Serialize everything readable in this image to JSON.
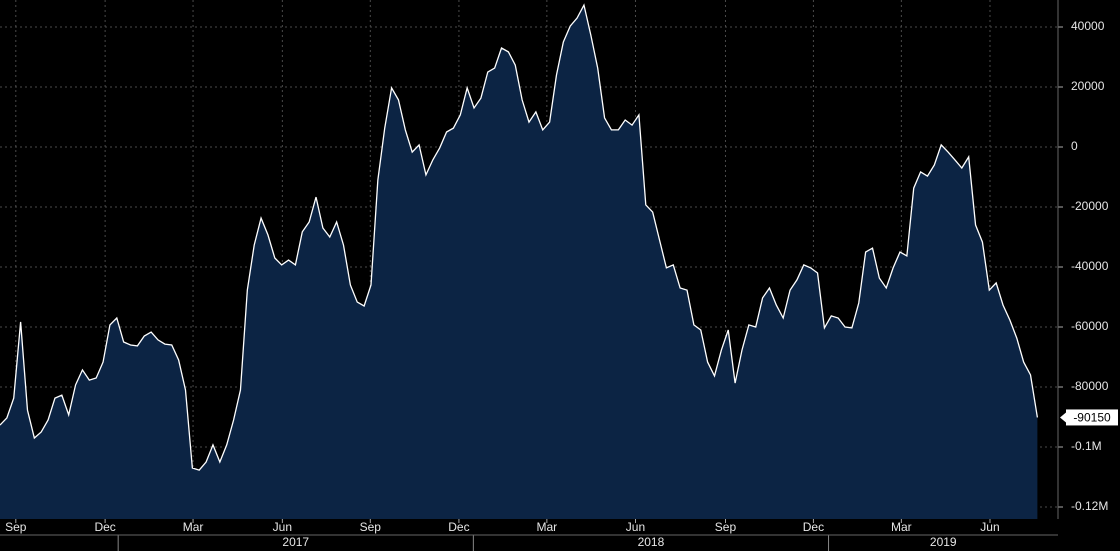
{
  "chart_data": {
    "type": "area",
    "color": "#ffffff",
    "fill": "#0c2444",
    "values": [
      -92700,
      -90300,
      -83700,
      -58300,
      -87700,
      -97000,
      -95000,
      -91000,
      -83700,
      -82700,
      -89300,
      -79300,
      -74300,
      -77700,
      -77000,
      -71700,
      -59300,
      -57000,
      -65000,
      -66000,
      -66300,
      -63000,
      -61700,
      -64300,
      -65700,
      -66000,
      -71000,
      -81000,
      -107000,
      -107700,
      -105000,
      -99300,
      -105000,
      -99300,
      -91000,
      -81000,
      -47700,
      -32700,
      -23700,
      -29300,
      -37000,
      -39300,
      -37700,
      -39300,
      -28300,
      -25000,
      -16700,
      -27000,
      -30000,
      -25000,
      -32700,
      -46000,
      -51700,
      -53000,
      -46000,
      -11000,
      6300,
      19700,
      15700,
      5700,
      -1700,
      700,
      -9300,
      -4300,
      -300,
      5000,
      6300,
      10700,
      19700,
      13000,
      16300,
      25000,
      26300,
      33000,
      31700,
      27300,
      15700,
      8300,
      11700,
      5700,
      8300,
      24000,
      35000,
      40300,
      43000,
      47300,
      37300,
      26300,
      9700,
      5700,
      5700,
      9000,
      7300,
      10700,
      -19300,
      -21700,
      -31000,
      -40300,
      -39300,
      -47000,
      -47700,
      -59300,
      -61000,
      -71700,
      -76300,
      -67700,
      -61000,
      -78700,
      -67700,
      -59300,
      -60000,
      -50300,
      -47000,
      -52700,
      -57000,
      -47700,
      -44300,
      -39300,
      -40300,
      -42000,
      -60300,
      -56300,
      -57000,
      -60000,
      -60300,
      -52000,
      -35000,
      -33700,
      -43700,
      -47000,
      -40300,
      -35000,
      -36300,
      -13700,
      -8300,
      -9700,
      -6000,
      700,
      -1700,
      -4300,
      -7000,
      -3300,
      -26000,
      -31700,
      -47700,
      -45300,
      -52700,
      -57700,
      -63700,
      -71700,
      -76000,
      -90150
    ],
    "xlim": [
      0,
      154
    ],
    "xticks": [
      {
        "value": 2.3,
        "label": "Sep"
      },
      {
        "value": 15.3,
        "label": "Dec"
      },
      {
        "value": 28.1,
        "label": "Mar"
      },
      {
        "value": 41.1,
        "label": "Jun"
      },
      {
        "value": 53.9,
        "label": "Sep"
      },
      {
        "value": 66.8,
        "label": "Dec"
      },
      {
        "value": 79.6,
        "label": "Mar"
      },
      {
        "value": 92.5,
        "label": "Jun"
      },
      {
        "value": 105.6,
        "label": "Sep"
      },
      {
        "value": 118.4,
        "label": "Dec"
      },
      {
        "value": 131.2,
        "label": "Mar"
      },
      {
        "value": 144.1,
        "label": "Jun"
      }
    ],
    "year_ticks": [
      {
        "value": 17.2,
        "label": "2017"
      },
      {
        "value": 68.9,
        "label": "2018"
      },
      {
        "value": 120.6,
        "label": "2019"
      }
    ],
    "ylim": [
      -124000,
      49000
    ],
    "yticks": [
      40000,
      20000,
      0,
      -20000,
      -40000,
      -60000,
      -80000,
      {
        "value": -100000,
        "label": "-0.1M"
      },
      {
        "value": -120000,
        "label": "-0.12M"
      }
    ],
    "grid": true
  }
}
